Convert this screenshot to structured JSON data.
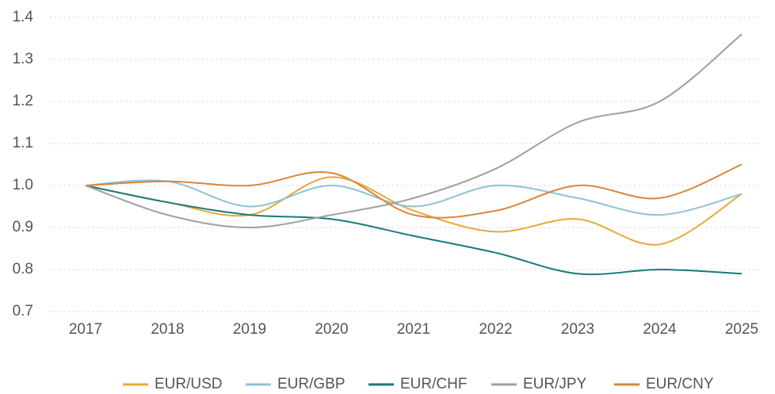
{
  "chart_data": {
    "type": "line",
    "categories": [
      "2017",
      "2018",
      "2019",
      "2020",
      "2021",
      "2022",
      "2023",
      "2024",
      "2025"
    ],
    "series": [
      {
        "name": "EUR/USD",
        "color": "#e8a838",
        "values": [
          1.0,
          0.96,
          0.93,
          1.02,
          0.94,
          0.89,
          0.92,
          0.86,
          0.98
        ]
      },
      {
        "name": "EUR/GBP",
        "color": "#8ec3d8",
        "values": [
          1.0,
          1.01,
          0.95,
          1.0,
          0.95,
          1.0,
          0.97,
          0.93,
          0.98
        ]
      },
      {
        "name": "EUR/CHF",
        "color": "#1a7a7a",
        "values": [
          1.0,
          0.96,
          0.93,
          0.92,
          0.88,
          0.84,
          0.79,
          0.8,
          0.79
        ]
      },
      {
        "name": "EUR/JPY",
        "color": "#a0a0a0",
        "values": [
          1.0,
          0.93,
          0.9,
          0.93,
          0.97,
          1.04,
          1.15,
          1.2,
          1.36
        ]
      },
      {
        "name": "EUR/CNY",
        "color": "#d9873a",
        "values": [
          1.0,
          1.01,
          1.0,
          1.03,
          0.93,
          0.94,
          1.0,
          0.97,
          1.05
        ]
      }
    ],
    "ylim": [
      0.7,
      1.4
    ],
    "yticks": [
      0.7,
      0.8,
      0.9,
      {
        "value": 1.0,
        "label": "1.0"
      },
      1.1,
      1.2,
      1.3,
      1.4
    ],
    "grid": true,
    "legend": "bottom"
  }
}
